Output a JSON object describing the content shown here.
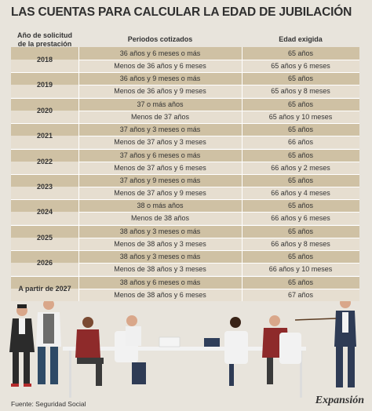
{
  "title": "LAS CUENTAS PARA CALCULAR LA EDAD DE JUBILACIÓN",
  "headers": {
    "year_line1": "Año de solicitud",
    "year_line2": "de la prestación",
    "periods": "Periodos cotizados",
    "age": "Edad exigida"
  },
  "groups": [
    {
      "year": "2018",
      "rows": [
        {
          "period": "36 años y 6 meses o más",
          "age": "65 años"
        },
        {
          "period": "Menos de 36 años y 6 meses",
          "age": "65 años y 6 meses"
        }
      ]
    },
    {
      "year": "2019",
      "rows": [
        {
          "period": "36 años y 9 meses o más",
          "age": "65 años"
        },
        {
          "period": "Menos de 36 años y 9 meses",
          "age": "65 años y 8 meses"
        }
      ]
    },
    {
      "year": "2020",
      "rows": [
        {
          "period": "37 o más años",
          "age": "65 años"
        },
        {
          "period": "Menos de 37 años",
          "age": "65 años y 10 meses"
        }
      ]
    },
    {
      "year": "2021",
      "rows": [
        {
          "period": "37 años y 3 meses o más",
          "age": "65 años"
        },
        {
          "period": "Menos de 37 años y 3 meses",
          "age": "66 años"
        }
      ]
    },
    {
      "year": "2022",
      "rows": [
        {
          "period": "37 años y 6 meses o más",
          "age": "65 años"
        },
        {
          "period": "Menos de 37 años y 6 meses",
          "age": "66 años y 2 meses"
        }
      ]
    },
    {
      "year": "2023",
      "rows": [
        {
          "period": "37 años y 9 meses o más",
          "age": "65 años"
        },
        {
          "period": "Menos de 37 años y 9 meses",
          "age": "66 años y 4 meses"
        }
      ]
    },
    {
      "year": "2024",
      "rows": [
        {
          "period": "38 o más años",
          "age": "65 años"
        },
        {
          "period": "Menos de 38 años",
          "age": "66 años y 6 meses"
        }
      ]
    },
    {
      "year": "2025",
      "rows": [
        {
          "period": "38 años y 3 meses o más",
          "age": "65 años"
        },
        {
          "period": "Menos de 38 años y 3 meses",
          "age": "66 años y 8 meses"
        }
      ]
    },
    {
      "year": "2026",
      "rows": [
        {
          "period": "38 años y 3 meses o más",
          "age": "65 años"
        },
        {
          "period": "Menos de 38 años y 3 meses",
          "age": "66 años y 10 meses"
        }
      ]
    },
    {
      "year": "A partir de 2027",
      "rows": [
        {
          "period": "38 años y 6 meses o más",
          "age": "65 años"
        },
        {
          "period": "Menos de 38 años y 6 meses",
          "age": "67 años"
        }
      ]
    }
  ],
  "footer": {
    "source": "Fuente: Seguridad Social",
    "brand": "Expansión"
  },
  "colors": {
    "background": "#e8e4dc",
    "row_odd": "#cfc1a4",
    "row_even": "#e6ded0"
  }
}
